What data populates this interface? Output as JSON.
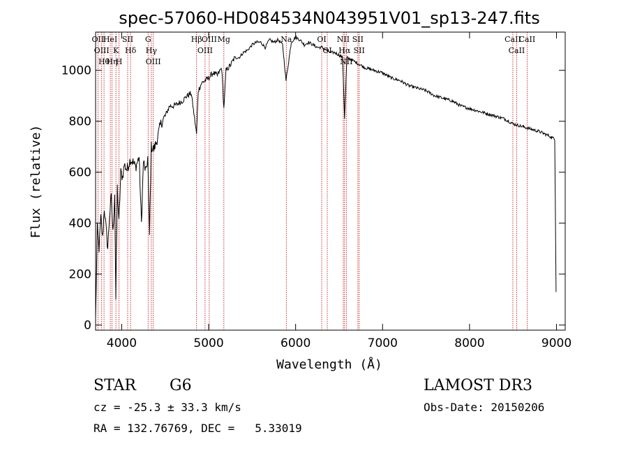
{
  "chart_data": {
    "type": "line",
    "title": "spec-57060-HD084534N043951V01_sp13-247.fits",
    "xlabel": "Wavelength (Å)",
    "ylabel": "Flux (relative)",
    "xlim": [
      3700,
      9100
    ],
    "ylim": [
      -20,
      1150
    ],
    "x_ticks": [
      4000,
      5000,
      6000,
      7000,
      8000,
      9000
    ],
    "y_ticks": [
      0,
      200,
      400,
      600,
      800,
      1000
    ],
    "grid": false,
    "series": [
      {
        "x": [
          3700,
          3720,
          3740,
          3760,
          3780,
          3800,
          3820,
          3840,
          3860,
          3880,
          3900,
          3920,
          3933,
          3950,
          3968,
          3990,
          4010,
          4030,
          4060,
          4100,
          4130,
          4160,
          4200,
          4227,
          4250,
          4280,
          4300,
          4320,
          4340,
          4370,
          4400,
          4450,
          4500,
          4550,
          4600,
          4650,
          4700,
          4750,
          4800,
          4861,
          4880,
          4920,
          4960,
          5000,
          5050,
          5100,
          5150,
          5175,
          5200,
          5250,
          5300,
          5350,
          5400,
          5450,
          5500,
          5550,
          5600,
          5650,
          5700,
          5750,
          5800,
          5850,
          5890,
          5950,
          6000,
          6050,
          6100,
          6150,
          6200,
          6250,
          6300,
          6350,
          6400,
          6450,
          6500,
          6540,
          6563,
          6590,
          6650,
          6700,
          6750,
          6800,
          6900,
          7000,
          7100,
          7200,
          7300,
          7400,
          7500,
          7600,
          7700,
          7800,
          7900,
          8000,
          8100,
          8200,
          8300,
          8400,
          8500,
          8600,
          8700,
          8800,
          8900,
          8980,
          8995
        ],
        "y": [
          20,
          380,
          300,
          420,
          340,
          460,
          380,
          300,
          430,
          500,
          360,
          520,
          100,
          540,
          400,
          600,
          580,
          630,
          610,
          650,
          640,
          620,
          660,
          400,
          640,
          600,
          660,
          350,
          700,
          690,
          720,
          790,
          820,
          860,
          860,
          870,
          880,
          900,
          910,
          750,
          920,
          950,
          960,
          970,
          990,
          980,
          1010,
          850,
          1000,
          1020,
          1050,
          1050,
          1070,
          1080,
          1100,
          1110,
          1110,
          1090,
          1120,
          1110,
          1120,
          1100,
          960,
          1110,
          1130,
          1120,
          1100,
          1110,
          1100,
          1090,
          1090,
          1080,
          1070,
          1070,
          1060,
          1050,
          810,
          1050,
          1040,
          1030,
          1020,
          1010,
          1000,
          990,
          970,
          960,
          940,
          930,
          920,
          900,
          890,
          880,
          860,
          850,
          840,
          830,
          820,
          810,
          790,
          780,
          770,
          760,
          745,
          730,
          130
        ]
      }
    ],
    "line_markers": [
      {
        "wl": 3727,
        "label": "OII"
      },
      {
        "wl": 3770,
        "label": "OIII"
      },
      {
        "wl": 3797,
        "label": "Hθ"
      },
      {
        "wl": 3869,
        "label": "HeI"
      },
      {
        "wl": 3889,
        "label": "Hη"
      },
      {
        "wl": 3934,
        "label": "K"
      },
      {
        "wl": 3969,
        "label": "H"
      },
      {
        "wl": 4069,
        "label": "SII"
      },
      {
        "wl": 4102,
        "label": "Hδ"
      },
      {
        "wl": 4304,
        "label": "G"
      },
      {
        "wl": 4341,
        "label": "Hγ"
      },
      {
        "wl": 4363,
        "label": "OIII"
      },
      {
        "wl": 4861,
        "label": "Hβ"
      },
      {
        "wl": 4959,
        "label": "OIII"
      },
      {
        "wl": 5007,
        "label": "OIII"
      },
      {
        "wl": 5175,
        "label": "Mg"
      },
      {
        "wl": 5893,
        "label": "Na"
      },
      {
        "wl": 6300,
        "label": "OI"
      },
      {
        "wl": 6364,
        "label": "OI"
      },
      {
        "wl": 6548,
        "label": "NII"
      },
      {
        "wl": 6563,
        "label": "Hα"
      },
      {
        "wl": 6583,
        "label": "NII"
      },
      {
        "wl": 6716,
        "label": "SII"
      },
      {
        "wl": 6731,
        "label": "SII"
      },
      {
        "wl": 8498,
        "label": "CaII"
      },
      {
        "wl": 8542,
        "label": "CaII"
      },
      {
        "wl": 8662,
        "label": "CaII"
      }
    ]
  },
  "info": {
    "class": "STAR",
    "subclass": "G6",
    "cz": "cz = -25.3 ± 33.3 km/s",
    "radec": "RA = 132.76769, DEC =   5.33019",
    "survey": "LAMOST DR3",
    "obsdate": "Obs-Date: 20150206"
  },
  "colors": {
    "line": "#000000",
    "marker": "#c00000"
  }
}
